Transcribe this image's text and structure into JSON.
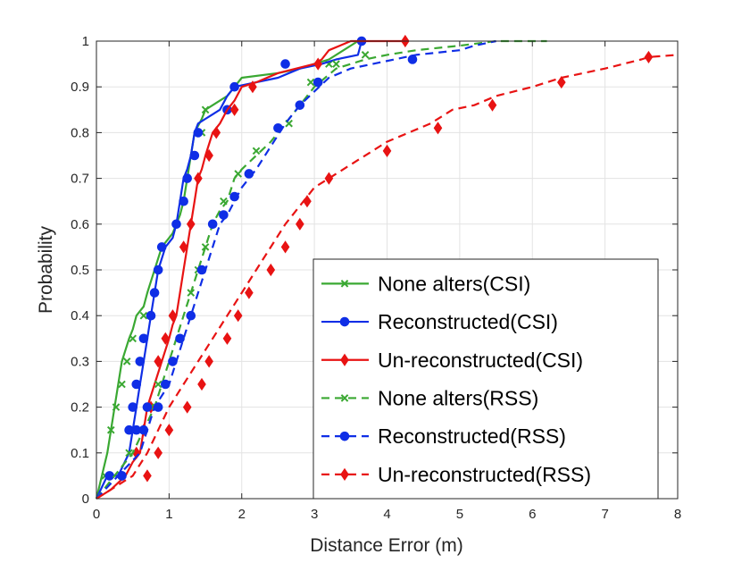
{
  "chart_data": {
    "type": "line",
    "title": "",
    "xlabel": "Distance Error (m)",
    "ylabel": "Probability",
    "xlim": [
      0,
      8
    ],
    "ylim": [
      0,
      1
    ],
    "xticks": [
      "0",
      "1",
      "2",
      "3",
      "4",
      "5",
      "6",
      "7",
      "8"
    ],
    "yticks": [
      "0",
      "0.1",
      "0.2",
      "0.3",
      "0.4",
      "0.5",
      "0.6",
      "0.7",
      "0.8",
      "0.9",
      "1"
    ],
    "grid": true,
    "legend_position": "bottom-right",
    "series": [
      {
        "name": "None alters(CSI)",
        "color": "#3aa832",
        "dashed": false,
        "marker": "x",
        "x": [
          0,
          0.15,
          0.2,
          0.3,
          0.35,
          0.45,
          0.5,
          0.55,
          0.6,
          0.65,
          0.7,
          0.9,
          1.0,
          1.05,
          1.1,
          1.15,
          1.2,
          1.25,
          1.3,
          1.35,
          1.45,
          1.5,
          1.6,
          1.7,
          1.8,
          1.9,
          2.0,
          2.5,
          2.8,
          3.0,
          3.2,
          3.6
        ],
        "y": [
          0,
          0.1,
          0.15,
          0.25,
          0.3,
          0.35,
          0.37,
          0.4,
          0.41,
          0.42,
          0.45,
          0.55,
          0.57,
          0.58,
          0.6,
          0.62,
          0.65,
          0.7,
          0.75,
          0.8,
          0.83,
          0.85,
          0.86,
          0.87,
          0.88,
          0.9,
          0.92,
          0.93,
          0.94,
          0.95,
          0.96,
          1.0
        ],
        "marker_points": [
          [
            0.12,
            0.05
          ],
          [
            0.2,
            0.15
          ],
          [
            0.27,
            0.2
          ],
          [
            0.35,
            0.25
          ],
          [
            0.42,
            0.3
          ],
          [
            0.5,
            0.35
          ],
          [
            0.65,
            0.4
          ],
          [
            1.45,
            0.8
          ],
          [
            1.5,
            0.85
          ],
          [
            3.2,
            0.95
          ]
        ]
      },
      {
        "name": "Reconstructed(CSI)",
        "color": "#0f2ee6",
        "dashed": false,
        "marker": "o",
        "x": [
          0,
          0.15,
          0.3,
          0.45,
          0.5,
          0.55,
          0.6,
          0.65,
          0.7,
          0.75,
          0.8,
          0.85,
          0.95,
          1.05,
          1.1,
          1.15,
          1.2,
          1.25,
          1.3,
          1.35,
          1.4,
          1.5,
          1.6,
          1.7,
          1.8,
          1.9,
          2.2,
          2.5,
          2.8,
          3.1,
          3.3,
          3.6,
          3.65
        ],
        "y": [
          0,
          0.05,
          0.05,
          0.1,
          0.15,
          0.2,
          0.25,
          0.3,
          0.35,
          0.4,
          0.45,
          0.5,
          0.55,
          0.57,
          0.6,
          0.65,
          0.7,
          0.72,
          0.75,
          0.8,
          0.82,
          0.83,
          0.84,
          0.85,
          0.88,
          0.9,
          0.91,
          0.92,
          0.94,
          0.95,
          0.96,
          0.97,
          1.0
        ],
        "marker_points": [
          [
            0.18,
            0.05
          ],
          [
            0.35,
            0.05
          ],
          [
            0.45,
            0.15
          ],
          [
            0.5,
            0.2
          ],
          [
            0.55,
            0.25
          ],
          [
            0.6,
            0.3
          ],
          [
            0.65,
            0.35
          ],
          [
            0.75,
            0.4
          ],
          [
            0.8,
            0.45
          ],
          [
            0.85,
            0.5
          ],
          [
            0.9,
            0.55
          ],
          [
            1.1,
            0.6
          ],
          [
            1.2,
            0.65
          ],
          [
            1.25,
            0.7
          ],
          [
            1.35,
            0.75
          ],
          [
            1.4,
            0.8
          ],
          [
            1.8,
            0.85
          ],
          [
            1.9,
            0.9
          ],
          [
            2.6,
            0.95
          ],
          [
            3.65,
            1.0
          ]
        ]
      },
      {
        "name": "Un-reconstructed(CSI)",
        "color": "#e81313",
        "dashed": false,
        "marker": "d",
        "x": [
          0,
          0.2,
          0.4,
          0.5,
          0.6,
          0.65,
          0.7,
          0.8,
          0.9,
          1.0,
          1.05,
          1.1,
          1.15,
          1.2,
          1.25,
          1.3,
          1.35,
          1.4,
          1.45,
          1.5,
          1.6,
          1.7,
          1.8,
          1.9,
          2.0,
          2.2,
          2.5,
          3.0,
          3.1,
          3.2,
          3.5,
          4.2,
          4.25
        ],
        "y": [
          0,
          0.02,
          0.05,
          0.08,
          0.1,
          0.15,
          0.2,
          0.25,
          0.3,
          0.35,
          0.38,
          0.4,
          0.45,
          0.5,
          0.55,
          0.6,
          0.65,
          0.7,
          0.72,
          0.75,
          0.8,
          0.82,
          0.85,
          0.87,
          0.9,
          0.91,
          0.93,
          0.95,
          0.96,
          0.98,
          1.0,
          1.0,
          1.0
        ],
        "marker_points": [
          [
            0.55,
            0.1
          ],
          [
            0.65,
            0.15
          ],
          [
            0.75,
            0.2
          ],
          [
            0.85,
            0.3
          ],
          [
            0.95,
            0.35
          ],
          [
            1.05,
            0.4
          ],
          [
            1.2,
            0.55
          ],
          [
            1.3,
            0.6
          ],
          [
            1.4,
            0.7
          ],
          [
            1.55,
            0.75
          ],
          [
            1.65,
            0.8
          ],
          [
            1.9,
            0.85
          ],
          [
            2.15,
            0.9
          ],
          [
            3.05,
            0.95
          ],
          [
            4.25,
            1.0
          ]
        ]
      },
      {
        "name": "None alters(RSS)",
        "color": "#3aa832",
        "dashed": true,
        "marker": "x",
        "x": [
          0,
          0.25,
          0.5,
          0.8,
          1.0,
          1.1,
          1.2,
          1.3,
          1.4,
          1.5,
          1.6,
          1.7,
          1.8,
          1.9,
          2.0,
          2.2,
          2.4,
          2.6,
          2.8,
          3.0,
          3.3,
          3.7,
          4.0,
          4.4,
          5.0,
          5.5,
          6.2
        ],
        "y": [
          0,
          0.05,
          0.1,
          0.2,
          0.3,
          0.35,
          0.4,
          0.45,
          0.5,
          0.55,
          0.6,
          0.63,
          0.65,
          0.7,
          0.72,
          0.75,
          0.78,
          0.82,
          0.86,
          0.9,
          0.94,
          0.96,
          0.97,
          0.98,
          0.99,
          1.0,
          1.0
        ],
        "marker_points": [
          [
            0.45,
            0.1
          ],
          [
            0.75,
            0.2
          ],
          [
            0.85,
            0.25
          ],
          [
            1.15,
            0.35
          ],
          [
            1.3,
            0.45
          ],
          [
            1.4,
            0.5
          ],
          [
            1.5,
            0.55
          ],
          [
            1.6,
            0.6
          ],
          [
            1.75,
            0.65
          ],
          [
            1.95,
            0.71
          ],
          [
            2.2,
            0.76
          ],
          [
            2.65,
            0.82
          ],
          [
            2.95,
            0.91
          ],
          [
            3.3,
            0.95
          ],
          [
            3.7,
            0.97
          ]
        ]
      },
      {
        "name": "Reconstructed(RSS)",
        "color": "#0f2ee6",
        "dashed": true,
        "marker": "o",
        "x": [
          0,
          0.3,
          0.6,
          0.8,
          1.0,
          1.1,
          1.2,
          1.3,
          1.4,
          1.5,
          1.6,
          1.7,
          1.8,
          1.9,
          2.0,
          2.2,
          2.4,
          2.6,
          2.8,
          3.0,
          3.2,
          3.5,
          3.8,
          4.1,
          4.4,
          5.0,
          5.2,
          5.5
        ],
        "y": [
          0,
          0.05,
          0.1,
          0.2,
          0.25,
          0.3,
          0.35,
          0.4,
          0.45,
          0.5,
          0.55,
          0.6,
          0.62,
          0.65,
          0.68,
          0.72,
          0.77,
          0.82,
          0.86,
          0.89,
          0.92,
          0.94,
          0.95,
          0.96,
          0.97,
          0.98,
          0.99,
          1.0
        ],
        "marker_points": [
          [
            0.35,
            0.05
          ],
          [
            0.55,
            0.15
          ],
          [
            0.65,
            0.15
          ],
          [
            0.7,
            0.2
          ],
          [
            0.85,
            0.2
          ],
          [
            0.95,
            0.25
          ],
          [
            1.05,
            0.3
          ],
          [
            1.15,
            0.35
          ],
          [
            1.3,
            0.4
          ],
          [
            1.45,
            0.5
          ],
          [
            1.6,
            0.6
          ],
          [
            1.75,
            0.62
          ],
          [
            1.9,
            0.66
          ],
          [
            2.1,
            0.71
          ],
          [
            2.5,
            0.81
          ],
          [
            2.8,
            0.86
          ],
          [
            3.05,
            0.91
          ],
          [
            4.35,
            0.96
          ]
        ]
      },
      {
        "name": "Un-reconstructed(RSS)",
        "color": "#e81313",
        "dashed": true,
        "marker": "d",
        "x": [
          0,
          0.5,
          0.7,
          0.85,
          1.0,
          1.2,
          1.4,
          1.6,
          1.8,
          2.0,
          2.2,
          2.4,
          2.6,
          2.8,
          3.0,
          3.2,
          3.5,
          3.8,
          4.0,
          4.3,
          4.6,
          4.9,
          5.2,
          5.5,
          6.0,
          6.4,
          7.0,
          7.5,
          7.6,
          8.0
        ],
        "y": [
          0,
          0.05,
          0.1,
          0.15,
          0.2,
          0.25,
          0.3,
          0.35,
          0.4,
          0.45,
          0.5,
          0.55,
          0.6,
          0.64,
          0.68,
          0.7,
          0.73,
          0.76,
          0.78,
          0.8,
          0.82,
          0.85,
          0.86,
          0.88,
          0.9,
          0.92,
          0.94,
          0.96,
          0.965,
          0.97
        ],
        "marker_points": [
          [
            0.7,
            0.05
          ],
          [
            0.85,
            0.1
          ],
          [
            1.0,
            0.15
          ],
          [
            1.25,
            0.2
          ],
          [
            1.45,
            0.25
          ],
          [
            1.55,
            0.3
          ],
          [
            1.8,
            0.35
          ],
          [
            1.95,
            0.4
          ],
          [
            2.1,
            0.45
          ],
          [
            2.4,
            0.5
          ],
          [
            2.6,
            0.55
          ],
          [
            2.8,
            0.6
          ],
          [
            2.9,
            0.65
          ],
          [
            3.2,
            0.7
          ],
          [
            4.0,
            0.76
          ],
          [
            4.7,
            0.81
          ],
          [
            5.45,
            0.86
          ],
          [
            6.4,
            0.91
          ],
          [
            7.6,
            0.965
          ]
        ]
      }
    ]
  }
}
